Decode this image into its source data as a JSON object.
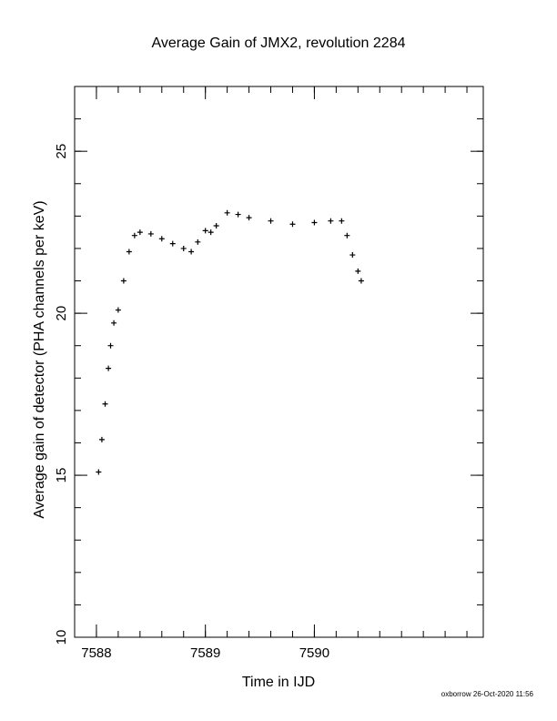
{
  "chart_data": {
    "type": "scatter",
    "title": "Average Gain of JMX2, revolution 2284",
    "xlabel": "Time in IJD",
    "ylabel": "Average gain of detector (PHA channels per keV)",
    "xlim": [
      7587.8,
      7591.55
    ],
    "ylim": [
      10,
      27
    ],
    "x_major_ticks": [
      7588,
      7589,
      7590
    ],
    "x_tick_labels": [
      "7588",
      "7589",
      "7590"
    ],
    "x_minor_step": 0.2,
    "y_major_ticks": [
      10,
      15,
      20,
      25
    ],
    "y_tick_labels": [
      "10",
      "15",
      "20",
      "25"
    ],
    "y_minor_step": 1,
    "grid": false,
    "marker": "+",
    "color": "#000000",
    "series": [
      {
        "x": [
          7588.02,
          7588.05,
          7588.08,
          7588.11,
          7588.13,
          7588.16,
          7588.2,
          7588.25,
          7588.3,
          7588.35,
          7588.4,
          7588.5,
          7588.6,
          7588.7,
          7588.8,
          7588.87,
          7588.93,
          7589.0,
          7589.05,
          7589.1,
          7589.2,
          7589.3,
          7589.4,
          7589.6,
          7589.8,
          7590.0,
          7590.15,
          7590.25,
          7590.3,
          7590.35,
          7590.4,
          7590.43
        ],
        "y": [
          15.1,
          16.1,
          17.2,
          18.3,
          19.0,
          19.7,
          20.1,
          21.0,
          21.9,
          22.4,
          22.5,
          22.45,
          22.3,
          22.15,
          22.0,
          21.9,
          22.2,
          22.55,
          22.5,
          22.7,
          23.1,
          23.05,
          22.95,
          22.85,
          22.75,
          22.8,
          22.85,
          22.85,
          22.4,
          21.8,
          21.3,
          21.0
        ]
      }
    ]
  },
  "footer": "oxborrow 26-Oct-2020 11:56"
}
